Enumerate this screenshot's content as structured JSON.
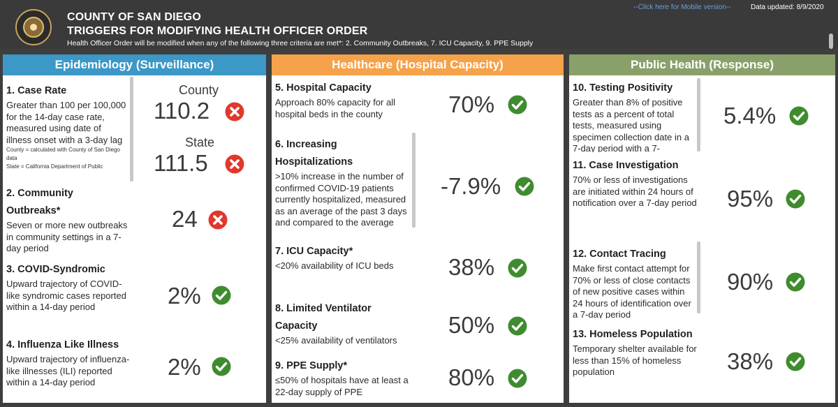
{
  "header": {
    "title1": "COUNTY OF SAN DIEGO",
    "title2": "TRIGGERS FOR MODIFYING HEALTH OFFICER ORDER",
    "subtitle": "Health Officer Order will be modified when any of the following three criteria are met*: 2. Community Outbreaks, 7. ICU Capacity, 9. PPE Supply",
    "mobile_link": "--Click here for Mobile version--",
    "updated": "Data updated: 8/9/2020"
  },
  "colors": {
    "epi": "#3c98c6",
    "healthcare": "#f6a24a",
    "public_health": "#8aa06a",
    "check": "#3f8c2f",
    "cross": "#e0392b"
  },
  "panels": {
    "epi": {
      "title": "Epidemiology (Surveillance)",
      "case_rate": {
        "title": "1. Case Rate",
        "desc": "Greater than 100 per 100,000 for the 14-day case rate, measured using date of illness onset with a 3-day lag",
        "note1": "County = calculated with County of San Diego data",
        "note2": "State = California Department of Public",
        "county_label": "County",
        "county_value": "110.2",
        "county_status": "cross-icon",
        "state_label": "State",
        "state_value": "111.5",
        "state_status": "cross-icon"
      },
      "outbreaks": {
        "title_line1": "2. Community",
        "title_line2": "Outbreaks*",
        "desc": "Seven or more new outbreaks in community settings in a 7-day period",
        "value": "24",
        "status": "cross-icon"
      },
      "syndromic": {
        "title": "3. COVID-Syndromic",
        "desc": "Upward trajectory of COVID-like syndromic cases reported within a 14-day period",
        "value": "2%",
        "status": "check-icon"
      },
      "influenza": {
        "title": "4. Influenza Like Illness",
        "desc": "Upward trajectory of influenza-like illnesses (ILI) reported within a 14-day period",
        "value": "2%",
        "status": "check-icon"
      }
    },
    "healthcare": {
      "title": "Healthcare (Hospital Capacity)",
      "hospital_capacity": {
        "title": "5. Hospital Capacity",
        "desc": "Approach 80% capacity for all hospital beds in the county",
        "value": "70%",
        "status": "check-icon"
      },
      "hospitalizations": {
        "title_line1": "6. Increasing",
        "title_line2": "Hospitalizations",
        "desc": ">10% increase in the number of confirmed COVID-19 patients currently hospitalized, measured as an average of the past 3 days and compared to the average",
        "value": "-7.9%",
        "status": "check-icon"
      },
      "icu": {
        "title": "7. ICU Capacity*",
        "desc": "<20% availability of ICU beds",
        "value": "38%",
        "status": "check-icon"
      },
      "ventilator": {
        "title_line1": "8. Limited Ventilator",
        "title_line2": "Capacity",
        "desc": "<25% availability of ventilators",
        "value": "50%",
        "status": "check-icon"
      },
      "ppe": {
        "title": "9. PPE Supply*",
        "desc": "≤50% of hospitals have at least a 22-day supply of PPE",
        "value": "80%",
        "status": "check-icon"
      }
    },
    "public_health": {
      "title": "Public Health (Response)",
      "testing": {
        "title": "10. Testing Positivity",
        "desc": "Greater than 8% of positive tests as a percent of total tests, measured using specimen collection date in a 7-day period with a 7-",
        "value": "5.4%",
        "status": "check-icon"
      },
      "investigation": {
        "title": "11. Case Investigation",
        "desc": "70% or less of investigations are initiated within 24 hours of notification over a 7-day period",
        "value": "95%",
        "status": "check-icon"
      },
      "tracing": {
        "title": "12. Contact Tracing",
        "desc": "Make first contact attempt for 70% or less of close contacts of new positive cases within 24 hours of identification over a 7-day period",
        "value": "90%",
        "status": "check-icon"
      },
      "homeless": {
        "title": "13. Homeless Population",
        "desc": "Temporary shelter available for less than 15% of homeless population",
        "value": "38%",
        "status": "check-icon"
      }
    }
  }
}
